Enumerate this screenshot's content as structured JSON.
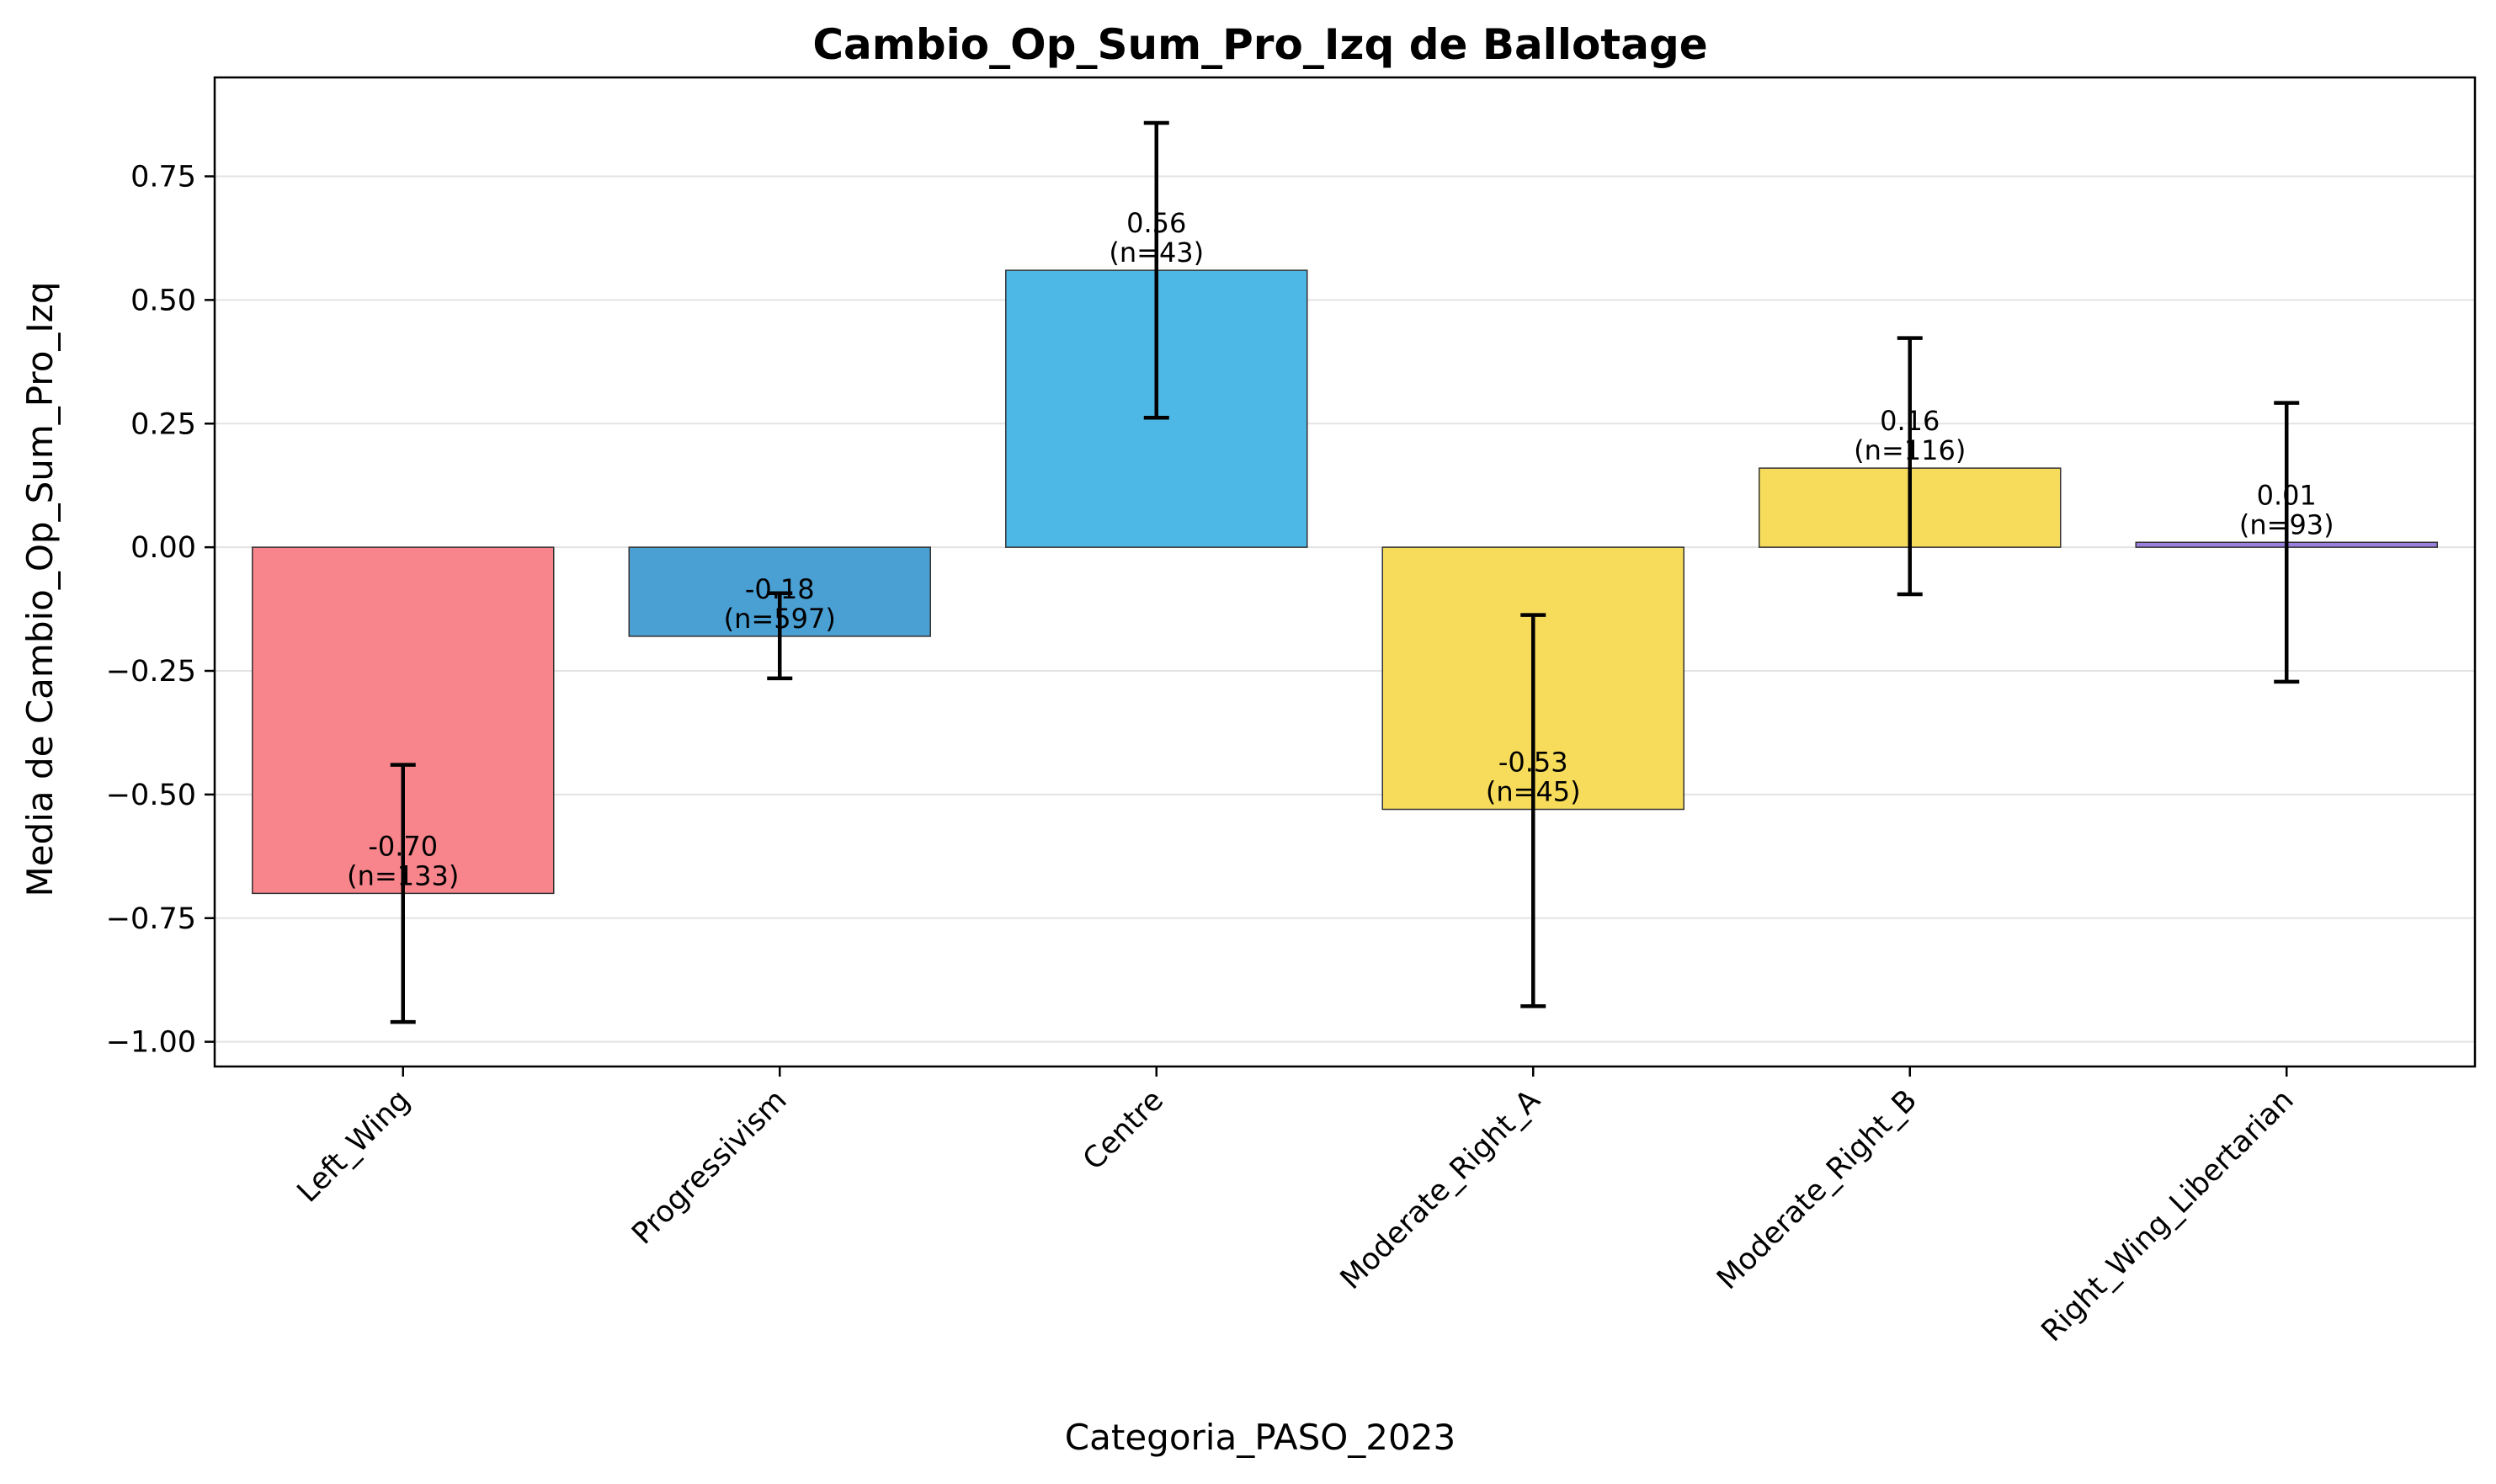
{
  "chart_data": {
    "type": "bar",
    "title": "Cambio_Op_Sum_Pro_Izq de Ballotage",
    "xlabel": "Categoria_PASO_2023",
    "ylabel": "Media de Cambio_Op_Sum_Pro_Izq",
    "ylim": [
      -1.05,
      0.95
    ],
    "yticks": [
      0.75,
      0.5,
      0.25,
      0.0,
      -0.25,
      -0.5,
      -0.75,
      -1.0
    ],
    "ytick_labels": [
      "0.75",
      "0.50",
      "0.25",
      "0.00",
      "−0.25",
      "−0.50",
      "−0.75",
      "−1.00"
    ],
    "grid": "horizontal",
    "categories": [
      "Left_Wing",
      "Progressivism",
      "Centre",
      "Moderate_Right_A",
      "Moderate_Right_B",
      "Right_Wing_Libertarian"
    ],
    "values": [
      -0.7,
      -0.18,
      0.56,
      -0.53,
      0.16,
      0.01
    ],
    "error_low": [
      -0.96,
      -0.265,
      0.262,
      -0.928,
      -0.095,
      -0.272
    ],
    "error_high": [
      -0.44,
      -0.093,
      0.858,
      -0.137,
      0.423,
      0.292
    ],
    "counts": [
      133,
      597,
      43,
      45,
      116,
      93
    ],
    "value_labels": [
      "-0.70",
      "-0.18",
      "0.56",
      "-0.53",
      "0.16",
      "0.01"
    ],
    "count_labels": [
      "(n=133)",
      "(n=597)",
      "(n=43)",
      "(n=45)",
      "(n=116)",
      "(n=93)"
    ],
    "colors": [
      "#f8858c",
      "#4a9fd3",
      "#4db8e6",
      "#f7dc5b",
      "#f7dc5b",
      "#9b7fe0"
    ],
    "edge_color": "#333333",
    "error_color": "#000000"
  }
}
